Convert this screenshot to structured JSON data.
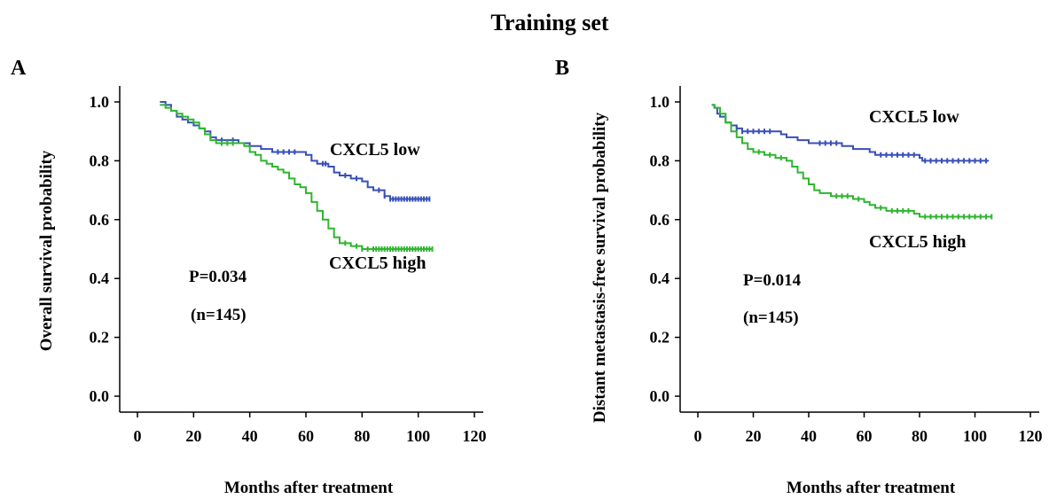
{
  "title": "Training set",
  "colors": {
    "low": "#3a4fb8",
    "high": "#2fb52f",
    "axis": "#000000"
  },
  "chart_data": [
    {
      "panel_label": "A",
      "type": "line",
      "step": true,
      "xlabel": "Months after treatment",
      "ylabel": "Overall  survival probability",
      "xlim": [
        0,
        120
      ],
      "ylim": [
        0,
        1
      ],
      "xticks": [
        "0",
        "20",
        "40",
        "60",
        "80",
        "100",
        "120"
      ],
      "yticks": [
        "0.0",
        "0.2",
        "0.4",
        "0.6",
        "0.8",
        "1.0"
      ],
      "annotations": [
        "P=0.034",
        "(n=145)"
      ],
      "series": [
        {
          "name": "CXCL5 low",
          "color_key": "low",
          "points": [
            [
              8,
              1.0
            ],
            [
              10,
              0.99
            ],
            [
              12,
              0.97
            ],
            [
              14,
              0.95
            ],
            [
              16,
              0.94
            ],
            [
              18,
              0.93
            ],
            [
              20,
              0.92
            ],
            [
              22,
              0.91
            ],
            [
              24,
              0.9
            ],
            [
              26,
              0.88
            ],
            [
              28,
              0.87
            ],
            [
              36,
              0.86
            ],
            [
              40,
              0.85
            ],
            [
              44,
              0.84
            ],
            [
              48,
              0.83
            ],
            [
              60,
              0.82
            ],
            [
              62,
              0.8
            ],
            [
              64,
              0.79
            ],
            [
              68,
              0.78
            ],
            [
              70,
              0.76
            ],
            [
              72,
              0.75
            ],
            [
              76,
              0.74
            ],
            [
              80,
              0.73
            ],
            [
              82,
              0.71
            ],
            [
              84,
              0.7
            ],
            [
              88,
              0.68
            ],
            [
              90,
              0.67
            ],
            [
              104,
              0.67
            ]
          ],
          "censor_x": [
            30,
            34,
            50,
            52,
            54,
            56,
            66,
            67,
            74,
            78,
            86,
            88,
            90,
            91,
            92,
            93,
            94,
            95,
            96,
            97,
            98,
            99,
            100,
            101,
            102,
            103,
            104
          ]
        },
        {
          "name": "CXCL5 high",
          "color_key": "high",
          "points": [
            [
              8,
              0.99
            ],
            [
              10,
              0.98
            ],
            [
              12,
              0.97
            ],
            [
              14,
              0.96
            ],
            [
              16,
              0.95
            ],
            [
              18,
              0.94
            ],
            [
              20,
              0.93
            ],
            [
              22,
              0.91
            ],
            [
              24,
              0.89
            ],
            [
              26,
              0.87
            ],
            [
              28,
              0.86
            ],
            [
              38,
              0.85
            ],
            [
              40,
              0.83
            ],
            [
              42,
              0.82
            ],
            [
              44,
              0.8
            ],
            [
              46,
              0.79
            ],
            [
              48,
              0.78
            ],
            [
              50,
              0.77
            ],
            [
              52,
              0.76
            ],
            [
              54,
              0.74
            ],
            [
              56,
              0.72
            ],
            [
              58,
              0.71
            ],
            [
              60,
              0.69
            ],
            [
              62,
              0.66
            ],
            [
              64,
              0.63
            ],
            [
              66,
              0.6
            ],
            [
              68,
              0.57
            ],
            [
              70,
              0.54
            ],
            [
              72,
              0.52
            ],
            [
              76,
              0.51
            ],
            [
              80,
              0.5
            ],
            [
              105,
              0.5
            ]
          ],
          "censor_x": [
            30,
            32,
            34,
            74,
            78,
            80,
            82,
            84,
            85,
            86,
            87,
            88,
            89,
            90,
            91,
            92,
            93,
            94,
            95,
            96,
            97,
            98,
            99,
            100,
            101,
            102,
            103,
            104,
            105
          ]
        }
      ]
    },
    {
      "panel_label": "B",
      "type": "line",
      "step": true,
      "xlabel": "Months after treatment",
      "ylabel": "Distant metastasis-free survival probability",
      "xlim": [
        0,
        120
      ],
      "ylim": [
        0,
        1
      ],
      "xticks": [
        "0",
        "20",
        "40",
        "60",
        "80",
        "100",
        "120"
      ],
      "yticks": [
        "0.0",
        "0.2",
        "0.4",
        "0.6",
        "0.8",
        "1.0"
      ],
      "annotations": [
        "P=0.014",
        "(n=145)"
      ],
      "series": [
        {
          "name": "CXCL5 low",
          "color_key": "low",
          "points": [
            [
              5,
              0.99
            ],
            [
              6,
              0.98
            ],
            [
              7,
              0.96
            ],
            [
              8,
              0.95
            ],
            [
              10,
              0.93
            ],
            [
              12,
              0.92
            ],
            [
              14,
              0.91
            ],
            [
              16,
              0.9
            ],
            [
              30,
              0.89
            ],
            [
              32,
              0.88
            ],
            [
              36,
              0.87
            ],
            [
              40,
              0.86
            ],
            [
              52,
              0.85
            ],
            [
              56,
              0.84
            ],
            [
              62,
              0.83
            ],
            [
              64,
              0.82
            ],
            [
              80,
              0.81
            ],
            [
              81,
              0.8
            ],
            [
              105,
              0.8
            ]
          ],
          "censor_x": [
            14,
            16,
            18,
            20,
            22,
            24,
            26,
            44,
            46,
            48,
            50,
            66,
            68,
            70,
            72,
            74,
            76,
            78,
            82,
            84,
            86,
            88,
            90,
            92,
            94,
            96,
            98,
            100,
            102,
            104
          ]
        },
        {
          "name": "CXCL5 high",
          "color_key": "high",
          "points": [
            [
              5,
              0.99
            ],
            [
              6,
              0.98
            ],
            [
              8,
              0.96
            ],
            [
              10,
              0.93
            ],
            [
              12,
              0.9
            ],
            [
              14,
              0.88
            ],
            [
              16,
              0.86
            ],
            [
              18,
              0.84
            ],
            [
              20,
              0.83
            ],
            [
              24,
              0.82
            ],
            [
              28,
              0.81
            ],
            [
              32,
              0.8
            ],
            [
              34,
              0.78
            ],
            [
              36,
              0.76
            ],
            [
              38,
              0.74
            ],
            [
              40,
              0.72
            ],
            [
              42,
              0.7
            ],
            [
              44,
              0.69
            ],
            [
              48,
              0.68
            ],
            [
              56,
              0.67
            ],
            [
              60,
              0.66
            ],
            [
              62,
              0.65
            ],
            [
              64,
              0.64
            ],
            [
              68,
              0.63
            ],
            [
              78,
              0.62
            ],
            [
              80,
              0.61
            ],
            [
              106,
              0.61
            ]
          ],
          "censor_x": [
            22,
            26,
            30,
            50,
            52,
            54,
            58,
            66,
            70,
            72,
            74,
            76,
            82,
            84,
            86,
            88,
            90,
            92,
            94,
            96,
            98,
            100,
            102,
            104,
            106
          ]
        }
      ]
    }
  ]
}
